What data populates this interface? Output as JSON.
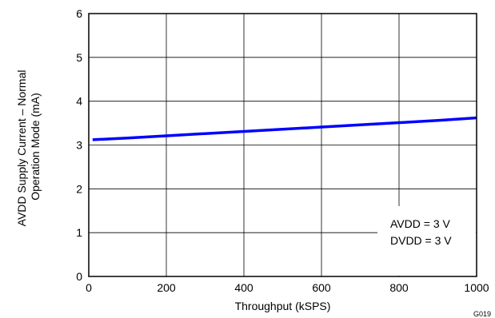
{
  "chart_data": {
    "type": "line",
    "xlabel": "Throughput (kSPS)",
    "ylabel_lines": [
      "AVDD Supply Current  –  Normal",
      "Operation Mode (mA)"
    ],
    "xlim": [
      0,
      1000
    ],
    "ylim": [
      0,
      6
    ],
    "x_ticks": [
      0,
      200,
      400,
      600,
      800,
      1000
    ],
    "y_ticks": [
      0,
      1,
      2,
      3,
      4,
      5,
      6
    ],
    "x_tick_labels": [
      "0",
      "200",
      "400",
      "600",
      "800",
      "1000"
    ],
    "y_tick_labels": [
      "0",
      "1",
      "2",
      "3",
      "4",
      "5",
      "6"
    ],
    "grid": true,
    "series": [
      {
        "color": "#0000ff",
        "x": [
          10,
          100,
          200,
          300,
          400,
          500,
          600,
          700,
          800,
          900,
          1000
        ],
        "y": [
          3.12,
          3.16,
          3.21,
          3.26,
          3.31,
          3.36,
          3.41,
          3.46,
          3.51,
          3.56,
          3.62
        ]
      }
    ],
    "annotations": [
      "AVDD = 3 V",
      "DVDD = 3 V"
    ],
    "figure_code": "G019"
  }
}
